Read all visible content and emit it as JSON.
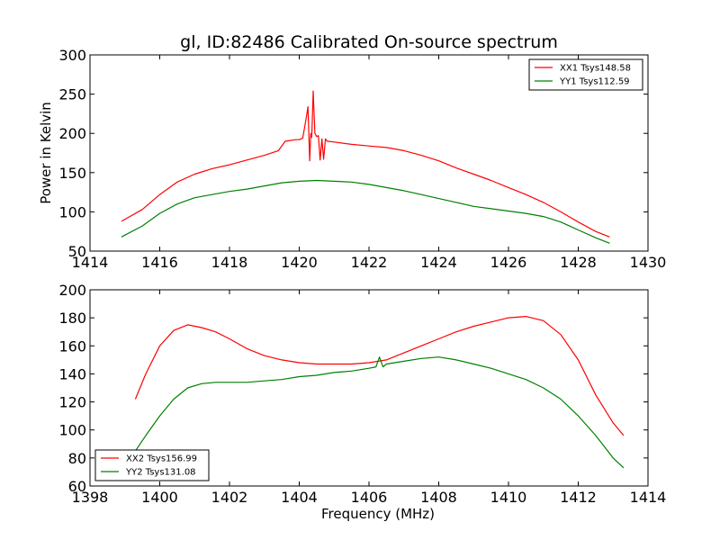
{
  "figure_title": "gl, ID:82486 Calibrated On-source spectrum",
  "chart_data": [
    {
      "type": "line",
      "title": "gl, ID:82486 Calibrated On-source spectrum",
      "xlabel": "",
      "ylabel": "Power in Kelvin",
      "xlim": [
        1414,
        1430
      ],
      "ylim": [
        50,
        300
      ],
      "xticks": [
        1414,
        1416,
        1418,
        1420,
        1422,
        1424,
        1426,
        1428,
        1430
      ],
      "yticks": [
        50,
        100,
        150,
        200,
        250,
        300
      ],
      "xtick_labels": [
        "1414",
        "1416",
        "1418",
        "1420",
        "1422",
        "1424",
        "1426",
        "1428",
        "1430"
      ],
      "ytick_labels": [
        "50",
        "100",
        "150",
        "200",
        "250",
        "300"
      ],
      "legend_position": "top-right",
      "series": [
        {
          "name": "XX1 Tsys148.58",
          "color": "#ff0000",
          "x": [
            1414.9,
            1415.5,
            1416.0,
            1416.5,
            1417.0,
            1417.5,
            1418.0,
            1418.5,
            1419.0,
            1419.4,
            1419.6,
            1419.9,
            1420.0,
            1420.1,
            1420.2,
            1420.25,
            1420.3,
            1420.33,
            1420.36,
            1420.4,
            1420.45,
            1420.5,
            1420.55,
            1420.6,
            1420.65,
            1420.7,
            1420.75,
            1420.8,
            1421.0,
            1421.5,
            1422.0,
            1422.5,
            1423.0,
            1423.5,
            1424.0,
            1424.5,
            1425.0,
            1425.5,
            1426.0,
            1426.5,
            1427.0,
            1427.5,
            1428.0,
            1428.5,
            1428.9
          ],
          "values": [
            88,
            103,
            122,
            138,
            148,
            155,
            160,
            166,
            172,
            178,
            190,
            192,
            192,
            194,
            220,
            234,
            165,
            200,
            195,
            254,
            200,
            196,
            197,
            166,
            193,
            167,
            193,
            190,
            189,
            186,
            184,
            182,
            178,
            172,
            165,
            156,
            148,
            140,
            131,
            122,
            112,
            100,
            87,
            75,
            68
          ]
        },
        {
          "name": "YY1 Tsys112.59",
          "color": "#008000",
          "x": [
            1414.9,
            1415.5,
            1416.0,
            1416.5,
            1417.0,
            1417.5,
            1418.0,
            1418.5,
            1419.0,
            1419.5,
            1420.0,
            1420.5,
            1421.0,
            1421.5,
            1422.0,
            1422.5,
            1423.0,
            1423.5,
            1424.0,
            1424.5,
            1425.0,
            1425.5,
            1426.0,
            1426.5,
            1427.0,
            1427.5,
            1428.0,
            1428.5,
            1428.9
          ],
          "values": [
            68,
            82,
            98,
            110,
            118,
            122,
            126,
            129,
            133,
            137,
            139,
            140,
            139,
            138,
            135,
            131,
            127,
            122,
            117,
            112,
            107,
            104,
            101,
            98,
            94,
            87,
            77,
            67,
            60
          ]
        }
      ]
    },
    {
      "type": "line",
      "title": "",
      "xlabel": "Frequency (MHz)",
      "ylabel": "",
      "xlim": [
        1398,
        1414
      ],
      "ylim": [
        60,
        200
      ],
      "xticks": [
        1398,
        1400,
        1402,
        1404,
        1406,
        1408,
        1410,
        1412,
        1414
      ],
      "yticks": [
        60,
        80,
        100,
        120,
        140,
        160,
        180,
        200
      ],
      "xtick_labels": [
        "1398",
        "1400",
        "1402",
        "1404",
        "1406",
        "1408",
        "1410",
        "1412",
        "1414"
      ],
      "ytick_labels": [
        "60",
        "80",
        "100",
        "120",
        "140",
        "160",
        "180",
        "200"
      ],
      "legend_position": "bottom-left",
      "series": [
        {
          "name": "XX2 Tsys156.99",
          "color": "#ff0000",
          "x": [
            1399.3,
            1399.6,
            1400.0,
            1400.4,
            1400.8,
            1401.2,
            1401.6,
            1402.0,
            1402.5,
            1403.0,
            1403.5,
            1404.0,
            1404.5,
            1405.0,
            1405.5,
            1406.0,
            1406.5,
            1407.0,
            1407.5,
            1408.0,
            1408.5,
            1409.0,
            1409.5,
            1410.0,
            1410.5,
            1411.0,
            1411.5,
            1412.0,
            1412.5,
            1413.0,
            1413.3
          ],
          "values": [
            122,
            140,
            160,
            171,
            175,
            173,
            170,
            165,
            158,
            153,
            150,
            148,
            147,
            147,
            147,
            148,
            150,
            155,
            160,
            165,
            170,
            174,
            177,
            180,
            181,
            178,
            168,
            150,
            125,
            105,
            96
          ]
        },
        {
          "name": "YY2 Tsys131.08",
          "color": "#008000",
          "x": [
            1399.3,
            1399.6,
            1400.0,
            1400.4,
            1400.8,
            1401.2,
            1401.6,
            1402.0,
            1402.5,
            1403.0,
            1403.5,
            1404.0,
            1404.5,
            1405.0,
            1405.5,
            1406.0,
            1406.2,
            1406.3,
            1406.4,
            1406.5,
            1407.0,
            1407.5,
            1408.0,
            1408.5,
            1409.0,
            1409.5,
            1410.0,
            1410.5,
            1411.0,
            1411.5,
            1412.0,
            1412.5,
            1413.0,
            1413.3
          ],
          "values": [
            85,
            96,
            110,
            122,
            130,
            133,
            134,
            134,
            134,
            135,
            136,
            138,
            139,
            141,
            142,
            144,
            145,
            152,
            145,
            147,
            149,
            151,
            152,
            150,
            147,
            144,
            140,
            136,
            130,
            122,
            110,
            96,
            80,
            73
          ]
        }
      ]
    }
  ]
}
